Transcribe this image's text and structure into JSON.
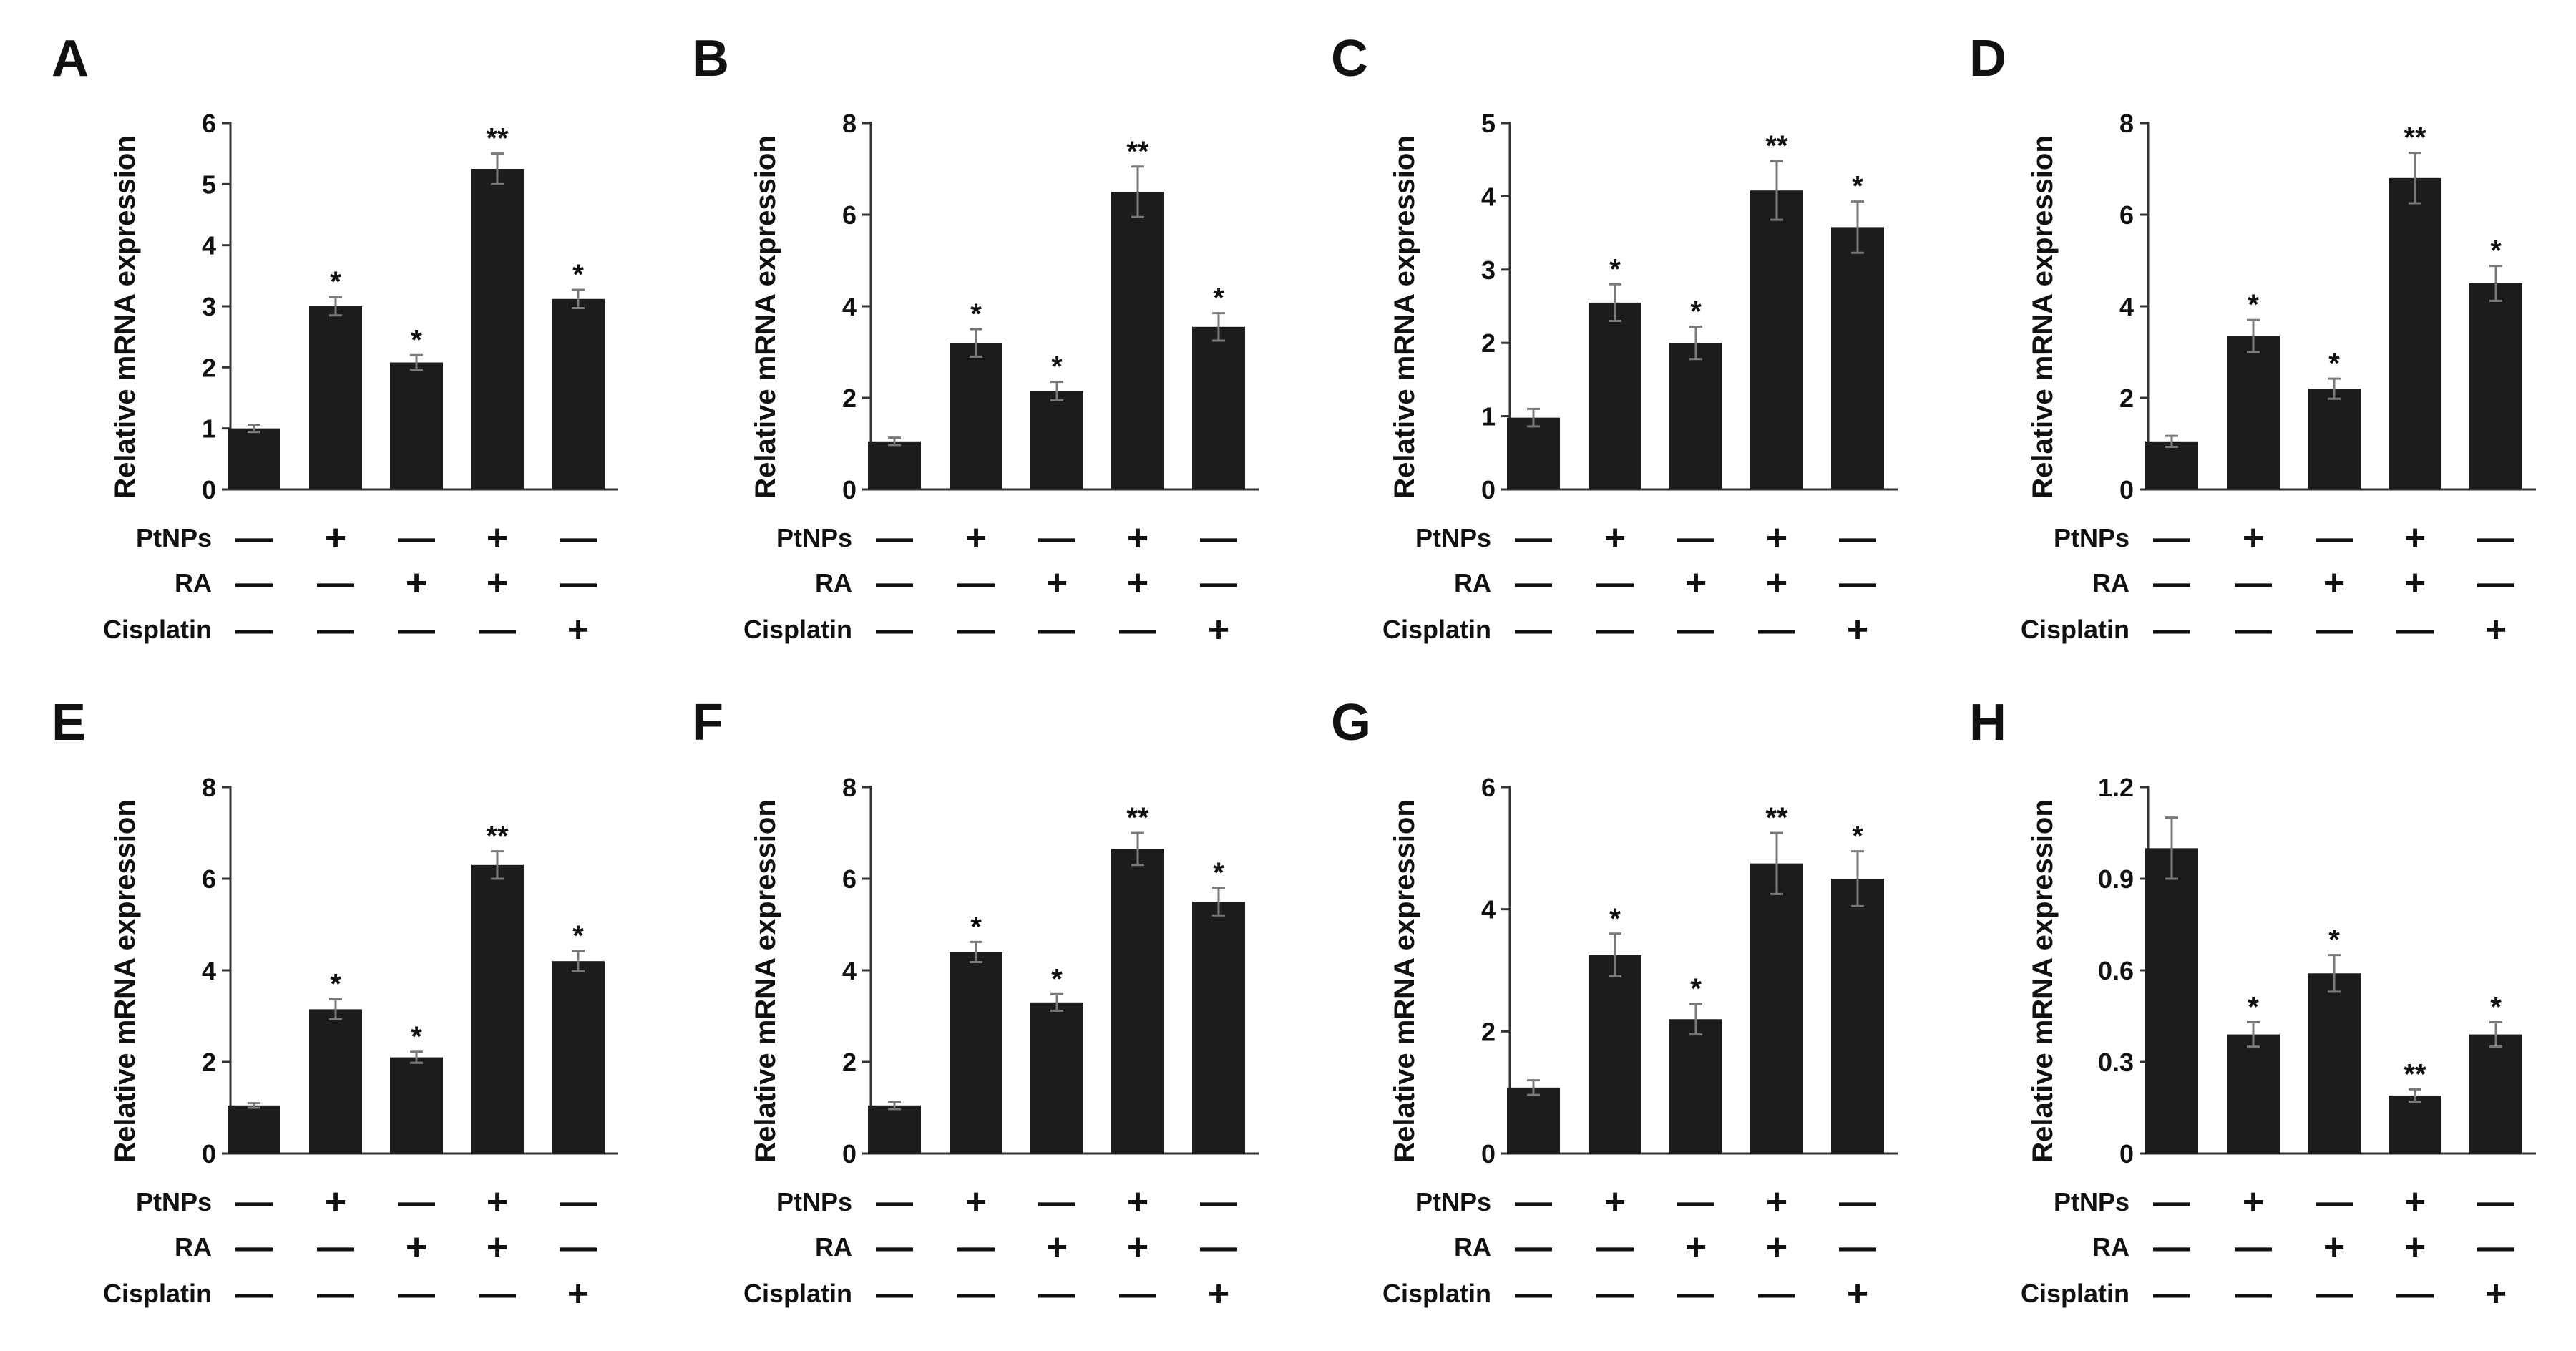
{
  "figure": {
    "treatments": [
      {
        "label": "PtNPs",
        "signs": [
          "—",
          "+",
          "—",
          "+",
          "—"
        ]
      },
      {
        "label": "RA",
        "signs": [
          "—",
          "—",
          "+",
          "+",
          "—"
        ]
      },
      {
        "label": "Cisplatin",
        "signs": [
          "—",
          "—",
          "—",
          "—",
          "+"
        ]
      }
    ]
  },
  "chart_data": [
    {
      "panel": "A",
      "type": "bar",
      "ylabel": "Relative mRNA expression",
      "ylim": [
        0,
        6
      ],
      "yticks": [
        0,
        1,
        2,
        3,
        4,
        5,
        6
      ],
      "ytick_labels": [
        "0",
        "1",
        "2",
        "3",
        "4",
        "5",
        "6"
      ],
      "values": [
        1.0,
        3.0,
        2.08,
        5.25,
        3.12
      ],
      "errors": [
        0.06,
        0.15,
        0.12,
        0.25,
        0.15
      ],
      "significance": [
        "",
        "*",
        "*",
        "**",
        "*"
      ]
    },
    {
      "panel": "B",
      "type": "bar",
      "ylabel": "Relative mRNA expression",
      "ylim": [
        0,
        8
      ],
      "yticks": [
        0,
        2,
        4,
        6,
        8
      ],
      "ytick_labels": [
        "0",
        "2",
        "4",
        "6",
        "8"
      ],
      "values": [
        1.05,
        3.2,
        2.15,
        6.5,
        3.55
      ],
      "errors": [
        0.08,
        0.3,
        0.2,
        0.55,
        0.3
      ],
      "significance": [
        "",
        "*",
        "*",
        "**",
        "*"
      ]
    },
    {
      "panel": "C",
      "type": "bar",
      "ylabel": "Relative mRNA expression",
      "ylim": [
        0,
        5
      ],
      "yticks": [
        0,
        1,
        2,
        3,
        4,
        5
      ],
      "ytick_labels": [
        "0",
        "1",
        "2",
        "3",
        "4",
        "5"
      ],
      "values": [
        0.98,
        2.55,
        2.0,
        4.08,
        3.58
      ],
      "errors": [
        0.12,
        0.25,
        0.22,
        0.4,
        0.35
      ],
      "significance": [
        "",
        "*",
        "*",
        "**",
        "*"
      ]
    },
    {
      "panel": "D",
      "type": "bar",
      "ylabel": "Relative mRNA expression",
      "ylim": [
        0,
        8
      ],
      "yticks": [
        0,
        2,
        4,
        6,
        8
      ],
      "ytick_labels": [
        "0",
        "2",
        "4",
        "6",
        "8"
      ],
      "values": [
        1.05,
        3.35,
        2.2,
        6.8,
        4.5
      ],
      "errors": [
        0.12,
        0.35,
        0.22,
        0.55,
        0.38
      ],
      "significance": [
        "",
        "*",
        "*",
        "**",
        "*"
      ]
    },
    {
      "panel": "E",
      "type": "bar",
      "ylabel": "Relative mRNA expression",
      "ylim": [
        0,
        8
      ],
      "yticks": [
        0,
        2,
        4,
        6,
        8
      ],
      "ytick_labels": [
        "0",
        "2",
        "4",
        "6",
        "8"
      ],
      "values": [
        1.05,
        3.15,
        2.1,
        6.3,
        4.2
      ],
      "errors": [
        0.05,
        0.22,
        0.12,
        0.3,
        0.22
      ],
      "significance": [
        "",
        "*",
        "*",
        "**",
        "*"
      ]
    },
    {
      "panel": "F",
      "type": "bar",
      "ylabel": "Relative mRNA expression",
      "ylim": [
        0,
        8
      ],
      "yticks": [
        0,
        2,
        4,
        6,
        8
      ],
      "ytick_labels": [
        "0",
        "2",
        "4",
        "6",
        "8"
      ],
      "values": [
        1.05,
        4.4,
        3.3,
        6.65,
        5.5
      ],
      "errors": [
        0.08,
        0.22,
        0.18,
        0.35,
        0.3
      ],
      "significance": [
        "",
        "*",
        "*",
        "**",
        "*"
      ]
    },
    {
      "panel": "G",
      "type": "bar",
      "ylabel": "Relative mRNA expression",
      "ylim": [
        0,
        6
      ],
      "yticks": [
        0,
        2,
        4,
        6
      ],
      "ytick_labels": [
        "0",
        "2",
        "4",
        "6"
      ],
      "values": [
        1.08,
        3.25,
        2.2,
        4.75,
        4.5
      ],
      "errors": [
        0.12,
        0.35,
        0.25,
        0.5,
        0.45
      ],
      "significance": [
        "",
        "*",
        "*",
        "**",
        "*"
      ]
    },
    {
      "panel": "H",
      "type": "bar",
      "ylabel": "Relative mRNA expression",
      "ylim": [
        0,
        1.2
      ],
      "yticks": [
        0,
        0.3,
        0.6,
        0.9,
        1.2
      ],
      "ytick_labels": [
        "0",
        "0.3",
        "0.6",
        "0.9",
        "1.2"
      ],
      "values": [
        1.0,
        0.39,
        0.59,
        0.19,
        0.39
      ],
      "errors": [
        0.1,
        0.04,
        0.06,
        0.02,
        0.04
      ],
      "significance": [
        "",
        "*",
        "*",
        "**",
        "*"
      ]
    }
  ]
}
